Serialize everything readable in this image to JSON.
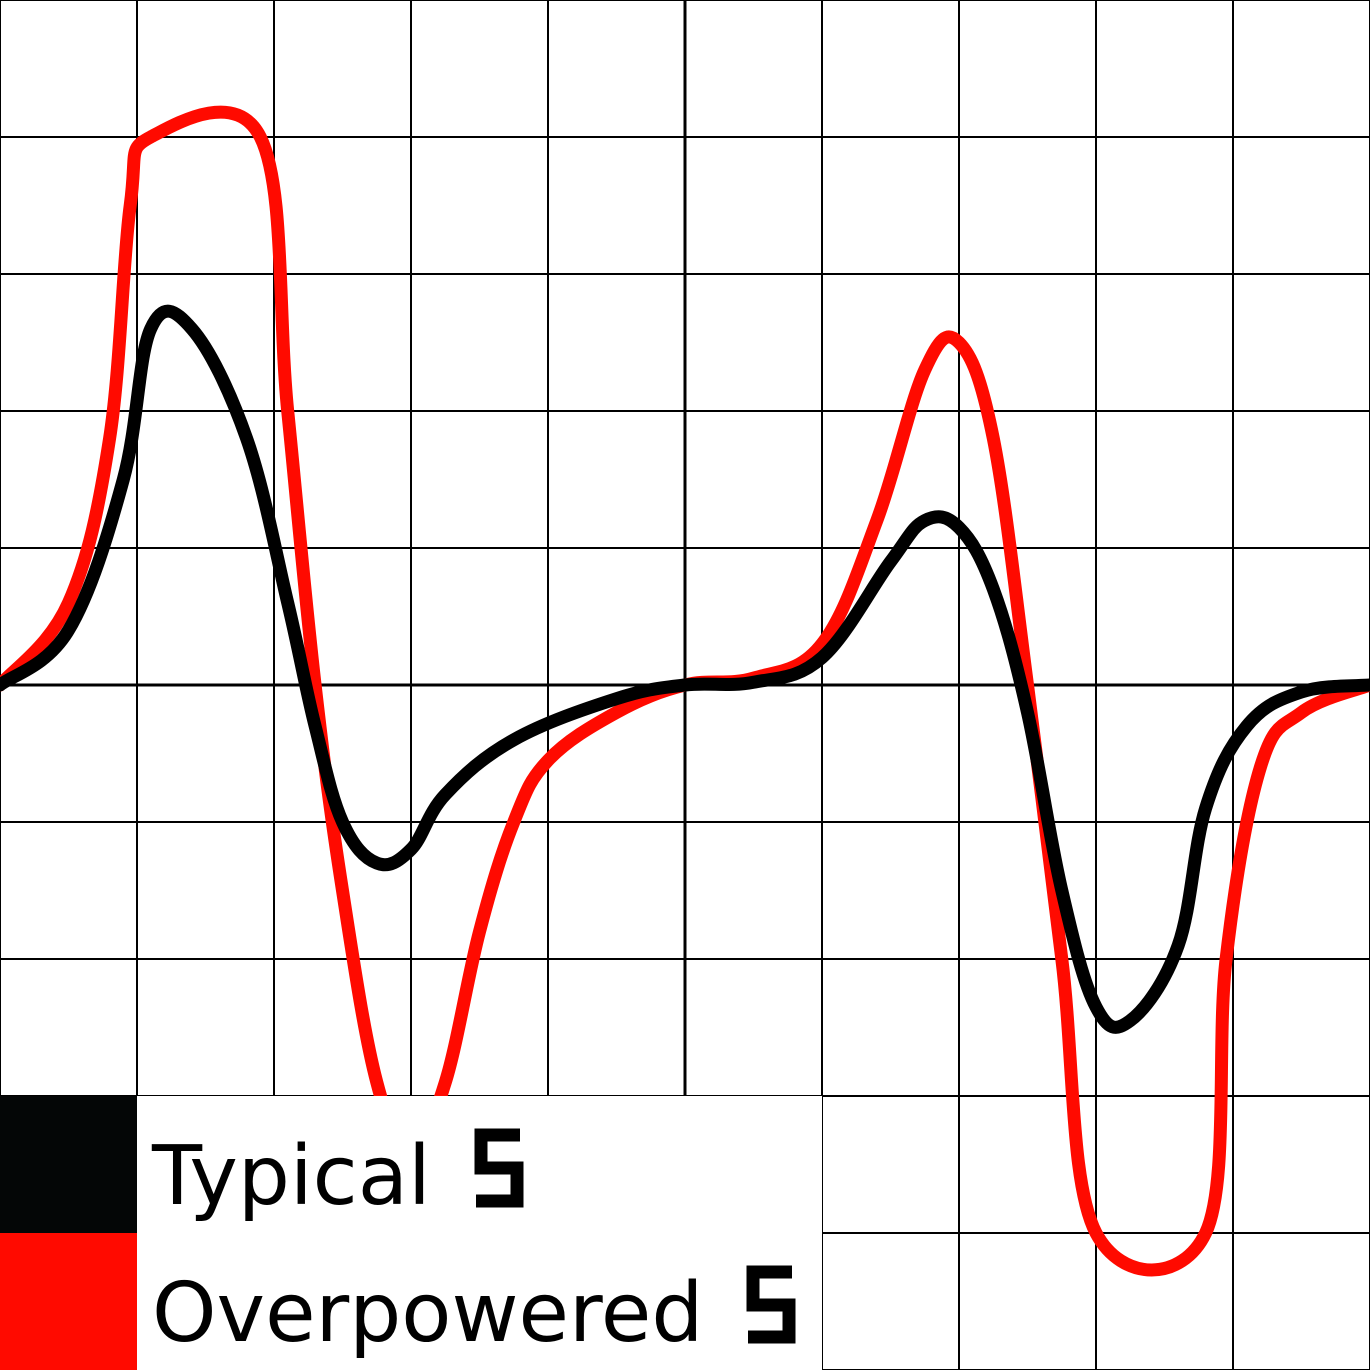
{
  "chart_data": {
    "type": "line",
    "grid": true,
    "xlim": [
      -5,
      5
    ],
    "ylim": [
      -5,
      5
    ],
    "colors": {
      "background": "#ffffff",
      "grid": "#000000"
    },
    "series": [
      {
        "name": "Overpowered",
        "color": "#ff0a00",
        "points": [
          [
            -5.0,
            0.0
          ],
          [
            -4.5,
            0.6
          ],
          [
            -4.2,
            1.8
          ],
          [
            -4.05,
            3.5
          ],
          [
            -3.9,
            4.0
          ],
          [
            -3.1,
            4.0
          ],
          [
            -2.9,
            2.0
          ],
          [
            -2.7,
            0.0
          ],
          [
            -2.5,
            -1.5
          ],
          [
            -2.25,
            -2.9
          ],
          [
            -2.0,
            -3.4
          ],
          [
            -1.75,
            -2.9
          ],
          [
            -1.5,
            -1.8
          ],
          [
            -1.25,
            -1.0
          ],
          [
            -1.0,
            -0.55
          ],
          [
            -0.5,
            -0.2
          ],
          [
            0.0,
            0.0
          ],
          [
            0.5,
            0.05
          ],
          [
            1.0,
            0.3
          ],
          [
            1.4,
            1.2
          ],
          [
            1.75,
            2.3
          ],
          [
            2.0,
            2.5
          ],
          [
            2.25,
            1.8
          ],
          [
            2.5,
            0.0
          ],
          [
            2.75,
            -2.0
          ],
          [
            3.0,
            -4.0
          ],
          [
            3.8,
            -4.0
          ],
          [
            3.95,
            -2.0
          ],
          [
            4.2,
            -0.6
          ],
          [
            4.5,
            -0.2
          ],
          [
            5.0,
            0.0
          ]
        ]
      },
      {
        "name": "Typical",
        "color": "#000000",
        "points": [
          [
            -5.0,
            0.0
          ],
          [
            -4.5,
            0.4
          ],
          [
            -4.1,
            1.5
          ],
          [
            -3.9,
            2.6
          ],
          [
            -3.6,
            2.6
          ],
          [
            -3.2,
            1.8
          ],
          [
            -2.9,
            0.6
          ],
          [
            -2.7,
            -0.3
          ],
          [
            -2.5,
            -1.0
          ],
          [
            -2.25,
            -1.3
          ],
          [
            -2.0,
            -1.2
          ],
          [
            -1.75,
            -0.8
          ],
          [
            -1.25,
            -0.4
          ],
          [
            -0.5,
            -0.1
          ],
          [
            0.0,
            0.0
          ],
          [
            0.5,
            0.02
          ],
          [
            1.0,
            0.2
          ],
          [
            1.5,
            0.9
          ],
          [
            1.75,
            1.2
          ],
          [
            2.0,
            1.15
          ],
          [
            2.25,
            0.7
          ],
          [
            2.5,
            -0.2
          ],
          [
            2.75,
            -1.5
          ],
          [
            3.0,
            -2.35
          ],
          [
            3.25,
            -2.45
          ],
          [
            3.6,
            -1.9
          ],
          [
            3.8,
            -0.9
          ],
          [
            4.1,
            -0.3
          ],
          [
            4.5,
            -0.05
          ],
          [
            5.0,
            0.0
          ]
        ]
      }
    ],
    "legend": {
      "placement": "bottom-left",
      "entries": [
        {
          "label": "Typical",
          "glyph": "5",
          "color": "#040606"
        },
        {
          "label": "Overpowered",
          "glyph": "5",
          "color": "#ff0a00"
        }
      ]
    }
  }
}
